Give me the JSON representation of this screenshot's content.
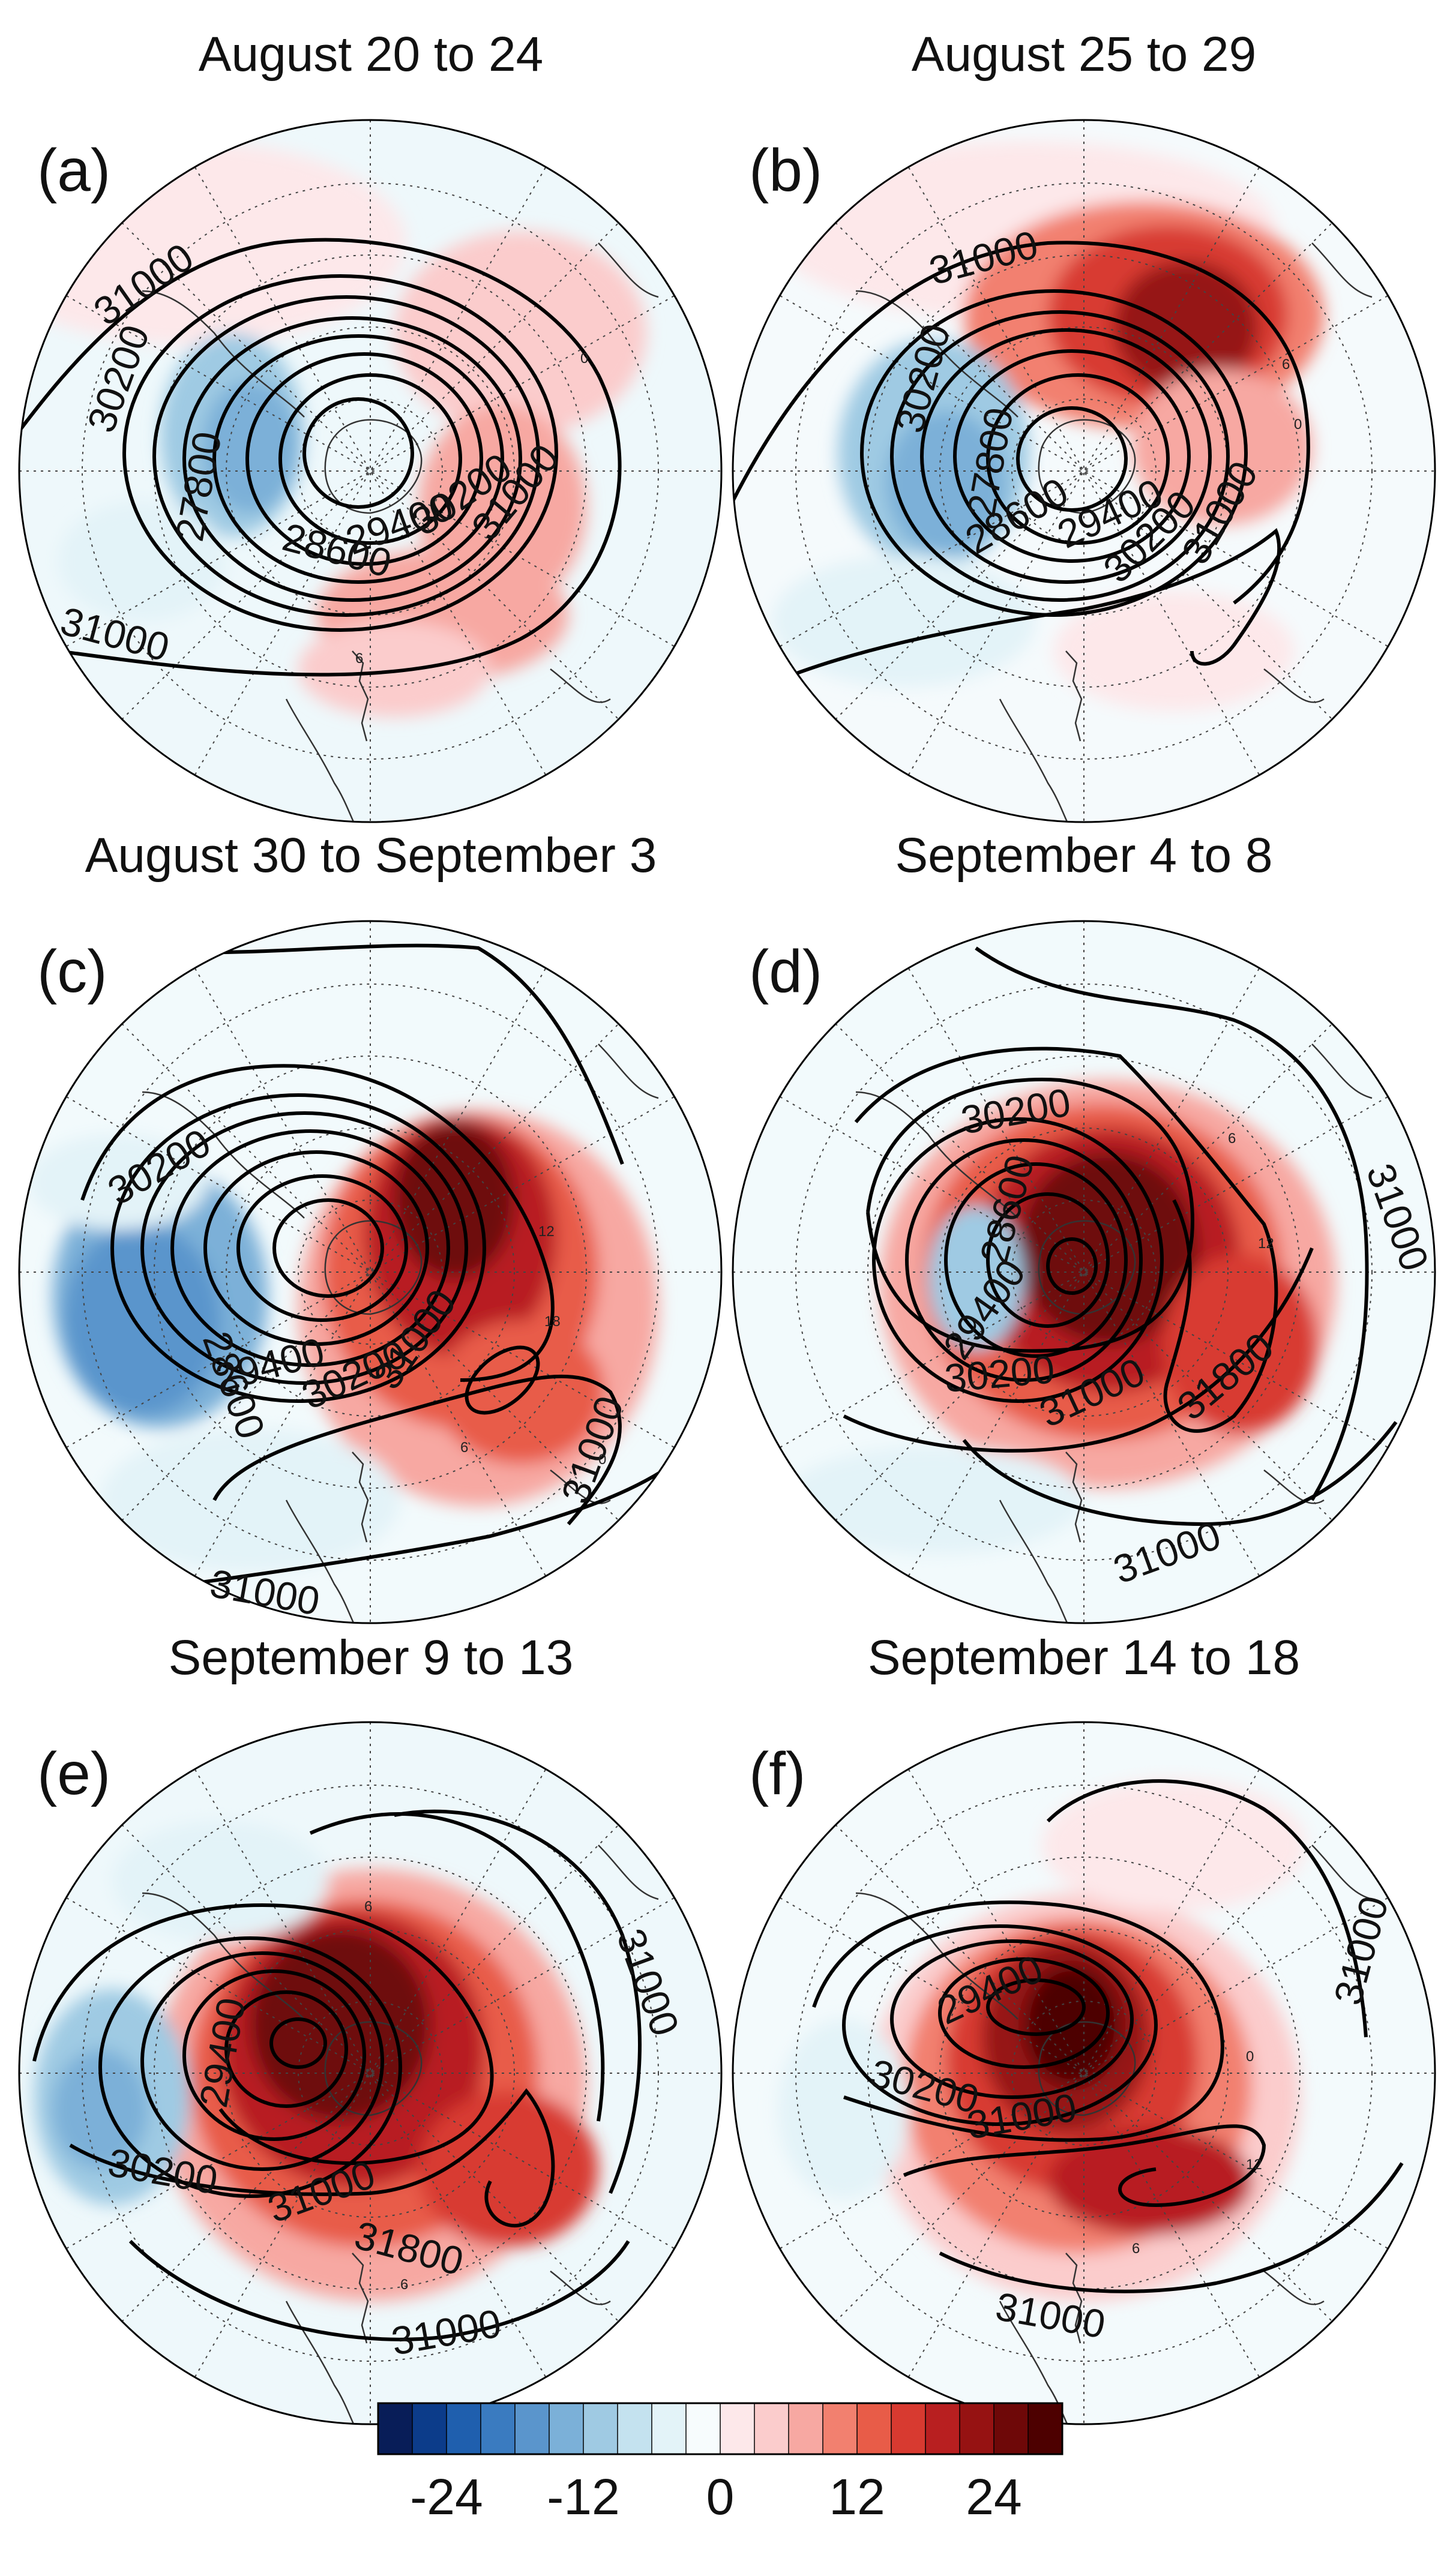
{
  "figure": {
    "panels": [
      {
        "id": "a",
        "label": "(a)",
        "title": "August 20 to 24",
        "low_center_label": "27800",
        "contours": [
          {
            "label": "31000"
          },
          {
            "label": "30200"
          },
          {
            "label": "28600"
          },
          {
            "label": "29400"
          },
          {
            "label": "30200"
          },
          {
            "label": "31000"
          },
          {
            "label": "31000"
          }
        ],
        "small_labels": [
          "0",
          "6"
        ]
      },
      {
        "id": "b",
        "label": "(b)",
        "title": "August 25 to 29",
        "low_center_label": "27800",
        "contours": [
          {
            "label": "31000"
          },
          {
            "label": "30200"
          },
          {
            "label": "28600"
          },
          {
            "label": "29400"
          },
          {
            "label": "30200"
          },
          {
            "label": "31000"
          }
        ],
        "small_labels": [
          "6",
          "0"
        ]
      },
      {
        "id": "c",
        "label": "(c)",
        "title": "August 30 to September 3",
        "low_center_label": "28600",
        "contours": [
          {
            "label": "30200"
          },
          {
            "label": "29400"
          },
          {
            "label": "30200"
          },
          {
            "label": "31000"
          },
          {
            "label": "31000"
          },
          {
            "label": "31000"
          }
        ],
        "small_labels": [
          "12",
          "18",
          "6",
          "0"
        ]
      },
      {
        "id": "d",
        "label": "(d)",
        "title": "September 4 to 8",
        "low_center_label": "28600",
        "contours": [
          {
            "label": "30200"
          },
          {
            "label": "29400"
          },
          {
            "label": "30200"
          },
          {
            "label": "31000"
          },
          {
            "label": "31800"
          },
          {
            "label": "31000"
          },
          {
            "label": "31000"
          }
        ],
        "small_labels": [
          "6",
          "12"
        ]
      },
      {
        "id": "e",
        "label": "(e)",
        "title": "September 9 to 13",
        "low_center_label": "29400",
        "contours": [
          {
            "label": "30200"
          },
          {
            "label": "31000"
          },
          {
            "label": "31800"
          },
          {
            "label": "31000"
          },
          {
            "label": "31000"
          }
        ],
        "small_labels": [
          "6",
          "6"
        ]
      },
      {
        "id": "f",
        "label": "(f)",
        "title": "September 14 to 18",
        "low_center_label": "29400",
        "contours": [
          {
            "label": "30200"
          },
          {
            "label": "31000"
          },
          {
            "label": "31000"
          },
          {
            "label": "31000"
          }
        ],
        "small_labels": [
          "0",
          "12",
          "6"
        ]
      }
    ],
    "colorbar": {
      "colors": [
        "#081d58",
        "#0c3c8a",
        "#1f5fae",
        "#3a7bc0",
        "#5a95cc",
        "#7bb0d8",
        "#9fcae3",
        "#c4e2ef",
        "#e3f3f8",
        "#f7fcfd",
        "#fde8ea",
        "#fbcccc",
        "#f7a8a2",
        "#f2806f",
        "#e85c48",
        "#d83a30",
        "#b81f20",
        "#961212",
        "#6e0808",
        "#4d0000"
      ],
      "tick_labels": [
        "-24",
        "-12",
        "0",
        "12",
        "24"
      ]
    }
  }
}
